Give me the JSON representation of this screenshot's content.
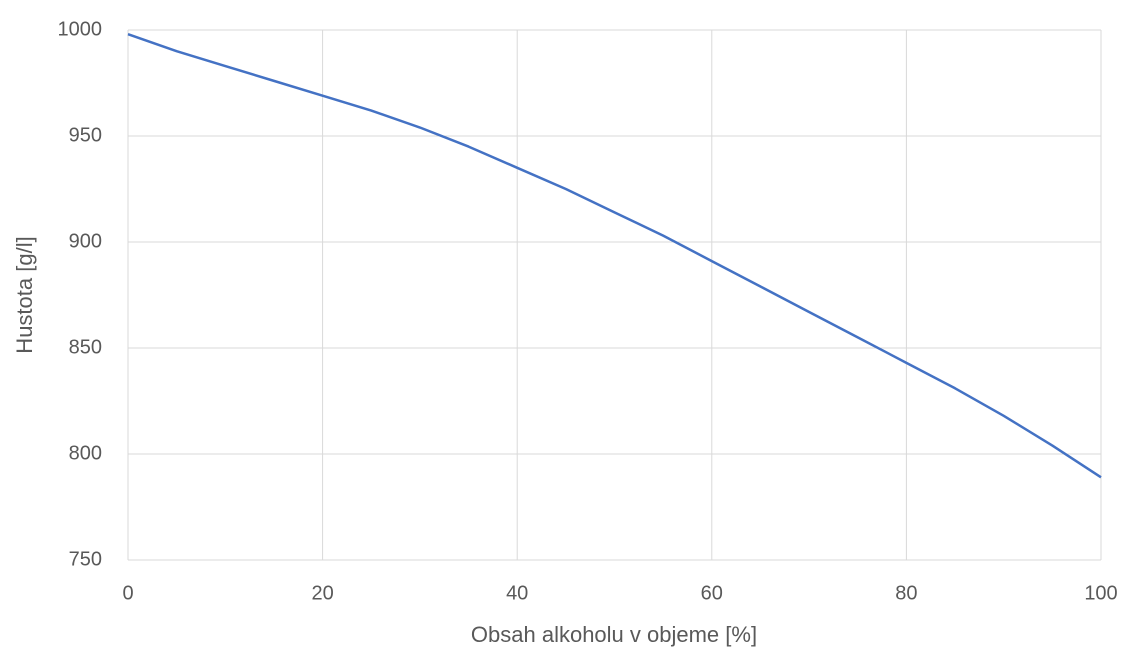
{
  "chart_data": {
    "type": "line",
    "xlabel": "Obsah alkoholu v objeme [%]",
    "ylabel": "Hustota [g/l]",
    "x": [
      0,
      5,
      10,
      15,
      20,
      25,
      30,
      35,
      40,
      45,
      50,
      55,
      60,
      65,
      70,
      75,
      80,
      85,
      90,
      95,
      100
    ],
    "series": [
      {
        "name": "Hustota",
        "color": "#4472c4",
        "values": [
          998,
          990,
          983,
          976,
          969,
          962,
          954,
          945,
          935,
          925,
          914,
          903,
          891,
          879,
          867,
          855,
          843,
          831,
          818,
          804,
          789
        ]
      }
    ],
    "xlim": [
      0,
      100
    ],
    "xticks": [
      0,
      20,
      40,
      60,
      80,
      100
    ],
    "ylim": [
      750,
      1000
    ],
    "yticks": [
      750,
      800,
      850,
      900,
      950,
      1000
    ],
    "grid": true
  }
}
